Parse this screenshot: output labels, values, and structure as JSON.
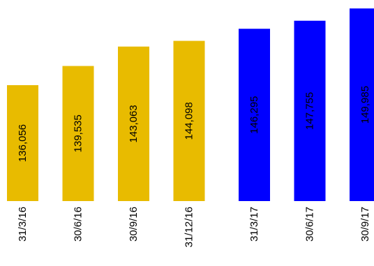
{
  "chart_data": {
    "type": "bar",
    "title": "",
    "xlabel": "",
    "ylabel": "",
    "categories": [
      "31/3/16",
      "30/6/16",
      "30/9/16",
      "31/12/16",
      "31/3/17",
      "30/6/17",
      "30/9/17"
    ],
    "values": [
      136056,
      139535,
      143063,
      144098,
      146295,
      147755,
      149985
    ],
    "value_labels": [
      "136,056",
      "139,535",
      "143,063",
      "144,098",
      "146,295",
      "147,755",
      "149,985"
    ],
    "bar_colors": [
      "#E8BB00",
      "#E8BB00",
      "#E8BB00",
      "#E8BB00",
      "#0000FF",
      "#0000FF",
      "#0000FF"
    ],
    "ylim": [
      0,
      150000
    ],
    "grid": false,
    "legend": "none",
    "data_label_orientation": "vertical",
    "tick_label_orientation": "vertical"
  }
}
